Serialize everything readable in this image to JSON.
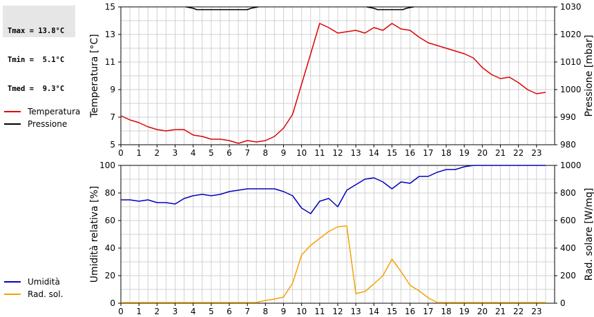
{
  "stats": {
    "tmax": "Tmax = 13.8°C",
    "tmin": "Tmin =  5.1°C",
    "tmed": "Tmed =  9.3°C"
  },
  "colors": {
    "temperature": "#dd0000",
    "pressure": "#000000",
    "humidity": "#0000bb",
    "radiation": "#f5a000",
    "grid": "#d0d0d0"
  },
  "chart_data": [
    {
      "type": "line",
      "ylabel": "Temperatura [°C]",
      "y2label": "Pressione [mbar]",
      "xlim": [
        0,
        24
      ],
      "ylim": [
        5,
        15
      ],
      "y2lim": [
        980,
        1030
      ],
      "x_ticks": [
        0,
        1,
        2,
        3,
        4,
        5,
        6,
        7,
        8,
        9,
        10,
        11,
        12,
        13,
        14,
        15,
        16,
        17,
        18,
        19,
        20,
        21,
        22,
        23
      ],
      "y_ticks": [
        5,
        7,
        9,
        11,
        13,
        15
      ],
      "y2_ticks": [
        980,
        990,
        1000,
        1010,
        1020,
        1030
      ],
      "grid": true,
      "legend": "left",
      "series": [
        {
          "name": "Temperatura",
          "axis": "left",
          "color": "#dd0000",
          "x": [
            0,
            0.5,
            1,
            1.5,
            2,
            2.5,
            3,
            3.5,
            4,
            4.5,
            5,
            5.5,
            6,
            6.5,
            7,
            7.5,
            8,
            8.5,
            9,
            9.5,
            10,
            10.5,
            11,
            11.5,
            12,
            12.5,
            13,
            13.5,
            14,
            14.5,
            15,
            15.5,
            16,
            16.5,
            17,
            17.5,
            18,
            18.5,
            19,
            19.5,
            20,
            20.5,
            21,
            21.5,
            22,
            22.5,
            23,
            23.5
          ],
          "values": [
            7.1,
            6.8,
            6.6,
            6.3,
            6.1,
            6.0,
            6.1,
            6.1,
            5.7,
            5.6,
            5.4,
            5.4,
            5.3,
            5.1,
            5.3,
            5.2,
            5.3,
            5.6,
            6.2,
            7.2,
            9.4,
            11.6,
            13.8,
            13.5,
            13.1,
            13.2,
            13.3,
            13.1,
            13.5,
            13.3,
            13.8,
            13.4,
            13.3,
            12.8,
            12.4,
            12.2,
            12.0,
            11.8,
            11.6,
            11.3,
            10.6,
            10.1,
            9.8,
            9.9,
            9.5,
            9.0,
            8.7,
            8.8
          ]
        },
        {
          "name": "Pressione",
          "axis": "right",
          "color": "#000000",
          "x": [
            3.6,
            4.0,
            4.2,
            5.0,
            6.0,
            7.0,
            7.2,
            7.6
          ],
          "values": [
            1030,
            1029.5,
            1029,
            1029,
            1029,
            1029,
            1029.5,
            1030
          ],
          "x_b": [
            13.6,
            14.0,
            14.2,
            15.0,
            15.6,
            15.8,
            16.2
          ],
          "values_b": [
            1030,
            1029.5,
            1029,
            1029,
            1029,
            1029.5,
            1030
          ]
        }
      ]
    },
    {
      "type": "line",
      "ylabel": "Umidità relativa [%]",
      "y2label": "Rad. solare [W/mq]",
      "xlim": [
        0,
        24
      ],
      "ylim": [
        0,
        100
      ],
      "y2lim": [
        0,
        1000
      ],
      "x_ticks": [
        0,
        1,
        2,
        3,
        4,
        5,
        6,
        7,
        8,
        9,
        10,
        11,
        12,
        13,
        14,
        15,
        16,
        17,
        18,
        19,
        20,
        21,
        22,
        23
      ],
      "y_ticks": [
        0,
        20,
        40,
        60,
        80,
        100
      ],
      "y2_ticks": [
        0,
        200,
        400,
        600,
        800,
        1000
      ],
      "grid": true,
      "legend": "left",
      "series": [
        {
          "name": "Umidità",
          "axis": "left",
          "color": "#0000bb",
          "x": [
            0,
            0.5,
            1,
            1.5,
            2,
            2.5,
            3,
            3.5,
            4,
            4.5,
            5,
            5.5,
            6,
            6.5,
            7,
            7.5,
            8,
            8.5,
            9,
            9.5,
            10,
            10.5,
            11,
            11.5,
            12,
            12.5,
            13,
            13.5,
            14,
            14.5,
            15,
            15.5,
            16,
            16.5,
            17,
            17.5,
            18,
            18.5,
            19,
            19.5,
            20,
            20.5,
            21,
            21.5,
            22,
            22.5,
            23,
            23.5
          ],
          "values": [
            75,
            75,
            74,
            75,
            73,
            73,
            72,
            76,
            78,
            79,
            78,
            79,
            81,
            82,
            83,
            83,
            83,
            83,
            81,
            78,
            69,
            65,
            74,
            76,
            70,
            82,
            86,
            90,
            91,
            88,
            83,
            88,
            87,
            92,
            92,
            95,
            97,
            97,
            99,
            100,
            100,
            100,
            100,
            100,
            100,
            100,
            100,
            100
          ]
        },
        {
          "name": "Rad. sol.",
          "axis": "right",
          "color": "#f5a000",
          "x": [
            0,
            1,
            2,
            3,
            4,
            5,
            6,
            7,
            7.5,
            8,
            8.5,
            9,
            9.5,
            10,
            10.5,
            11,
            11.5,
            12,
            12.5,
            13,
            13.5,
            14,
            14.5,
            15,
            15.5,
            16,
            16.5,
            17,
            17.5,
            18,
            19,
            20,
            21,
            22,
            23,
            23.5
          ],
          "values": [
            5,
            5,
            5,
            5,
            5,
            5,
            5,
            5,
            5,
            20,
            30,
            45,
            145,
            350,
            420,
            470,
            520,
            555,
            560,
            70,
            85,
            140,
            200,
            320,
            230,
            130,
            90,
            40,
            5,
            5,
            5,
            5,
            5,
            5,
            5,
            5
          ]
        }
      ]
    }
  ]
}
